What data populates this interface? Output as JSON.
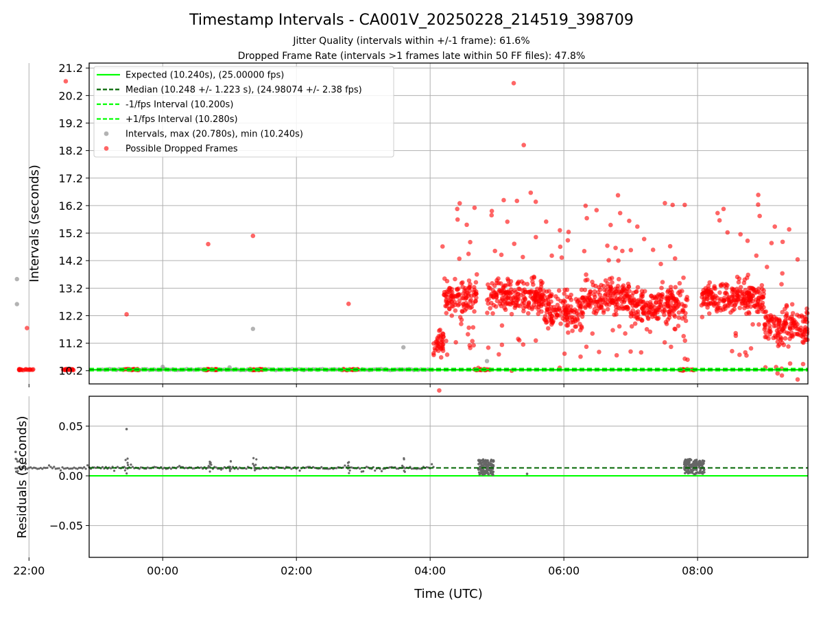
{
  "figure": {
    "title": "Timestamp Intervals - CA001V_20250228_214519_398709",
    "subtitle1": "Jitter Quality (intervals within +/-1 frame): 61.6%",
    "subtitle2": "Dropped Frame Rate (intervals >1 frames late within 50 FF files): 47.8%"
  },
  "colors": {
    "expected": "#00ff00",
    "median": "#006400",
    "bound": "#00ff00",
    "intervals": "#808080",
    "dropped": "#ff0000",
    "residuals": "#666666",
    "grid": "#b0b0b0"
  },
  "chart_data": [
    {
      "type": "scatter",
      "panel": "intervals",
      "ylabel": "Intervals (seconds)",
      "xlabel": "",
      "xlim": [
        -1.1,
        9.65
      ],
      "ylim": [
        9.72,
        21.38
      ],
      "yticks": [
        10.2,
        11.2,
        12.2,
        13.2,
        14.2,
        15.2,
        16.2,
        17.2,
        18.2,
        19.2,
        20.2,
        21.2
      ],
      "ytick_labels": [
        "10.2",
        "11.2",
        "12.2",
        "13.2",
        "14.2",
        "15.2",
        "16.2",
        "17.2",
        "18.2",
        "19.2",
        "20.2",
        "21.2"
      ],
      "xticks": [
        -2,
        0,
        2,
        4,
        6,
        8
      ],
      "grid": true,
      "legend_position": "upper-left",
      "legend": [
        {
          "label": "Expected (10.240s), (25.00000 fps)",
          "style": "solid",
          "color": "#00ff00"
        },
        {
          "label": "Median (10.248 +/- 1.223 s), (24.98074 +/- 2.38 fps)",
          "style": "dashed",
          "color": "#006400"
        },
        {
          "label": "-1/fps Interval (10.200s)",
          "style": "dashed",
          "color": "#00ff00"
        },
        {
          "label": "+1/fps Interval (10.280s)",
          "style": "dashed",
          "color": "#00ff00"
        },
        {
          "label": "Intervals, max (20.780s), min (10.240s)",
          "style": "marker",
          "color": "#808080"
        },
        {
          "label": "Possible Dropped Frames",
          "style": "marker",
          "color": "#ff0000"
        }
      ],
      "lines": {
        "expected": 10.24,
        "median": 10.248,
        "lower": 10.2,
        "upper": 10.28
      },
      "segments_x": [
        -0.9,
        4.05
      ],
      "gray_outliers": [
        {
          "x": -2.18,
          "y": 13.53
        },
        {
          "x": -2.18,
          "y": 12.62
        },
        {
          "x": 1.35,
          "y": 11.72
        },
        {
          "x": 3.6,
          "y": 11.05
        },
        {
          "x": -0.0,
          "y": 10.34
        },
        {
          "x": 1.0,
          "y": 10.32
        },
        {
          "x": 4.85,
          "y": 10.55
        }
      ],
      "red_clusters_low": [
        -2.05,
        -1.4,
        -0.48,
        0.73,
        1.42,
        2.8,
        4.78,
        7.85
      ],
      "red_outliers": [
        {
          "x": -1.45,
          "y": 20.72
        },
        {
          "x": -2.03,
          "y": 11.75
        },
        {
          "x": -0.54,
          "y": 12.25
        },
        {
          "x": 0.68,
          "y": 14.8
        },
        {
          "x": 1.35,
          "y": 15.1
        },
        {
          "x": 2.78,
          "y": 12.63
        },
        {
          "x": 5.25,
          "y": 20.65
        },
        {
          "x": 5.4,
          "y": 18.4
        },
        {
          "x": 5.22,
          "y": 10.2
        },
        {
          "x": 4.72,
          "y": 10.3
        },
        {
          "x": 7.85,
          "y": 10.6
        },
        {
          "x": 7.78,
          "y": 10.2
        }
      ],
      "red_bands": [
        {
          "x0": 4.05,
          "x1": 4.2,
          "base": 11.2,
          "amp": 0.8
        },
        {
          "x0": 4.2,
          "x1": 4.7,
          "base": 12.9,
          "amp": 0.9
        },
        {
          "x0": 4.85,
          "x1": 5.7,
          "base": 12.9,
          "amp": 0.8
        },
        {
          "x0": 5.7,
          "x1": 6.3,
          "base": 12.4,
          "amp": 1.0
        },
        {
          "x0": 6.3,
          "x1": 7.0,
          "base": 12.9,
          "amp": 0.8
        },
        {
          "x0": 7.0,
          "x1": 7.4,
          "base": 12.5,
          "amp": 0.9
        },
        {
          "x0": 7.4,
          "x1": 7.85,
          "base": 12.6,
          "amp": 1.1
        },
        {
          "x0": 8.05,
          "x1": 9.0,
          "base": 12.9,
          "amp": 0.8
        },
        {
          "x0": 9.0,
          "x1": 9.65,
          "base": 11.8,
          "amp": 0.9
        }
      ]
    },
    {
      "type": "scatter",
      "panel": "residuals",
      "ylabel": "Residuals (seconds)",
      "xlabel": "Time (UTC)",
      "xlim": [
        -1.1,
        9.65
      ],
      "ylim": [
        -0.082,
        0.08
      ],
      "yticks": [
        -0.05,
        0.0,
        0.05
      ],
      "ytick_labels": [
        "−0.05",
        "0.00",
        "0.05"
      ],
      "xticks": [
        -2,
        0,
        2,
        4,
        6,
        8
      ],
      "xtick_labels": [
        "22:00",
        "00:00",
        "02:00",
        "04:00",
        "06:00",
        "08:00"
      ],
      "grid": true,
      "zero_line": 0.0,
      "median_line": 0.008,
      "outliers": [
        {
          "x": -0.54,
          "y": 0.047
        },
        {
          "x": -2.2,
          "y": 0.024
        },
        {
          "x": 5.45,
          "y": 0.002
        }
      ],
      "clusters": [
        {
          "x0": 4.72,
          "x1": 4.95,
          "lo": 0.001,
          "hi": 0.017
        },
        {
          "x0": 7.8,
          "x1": 8.1,
          "lo": 0.001,
          "hi": 0.017
        }
      ]
    }
  ]
}
